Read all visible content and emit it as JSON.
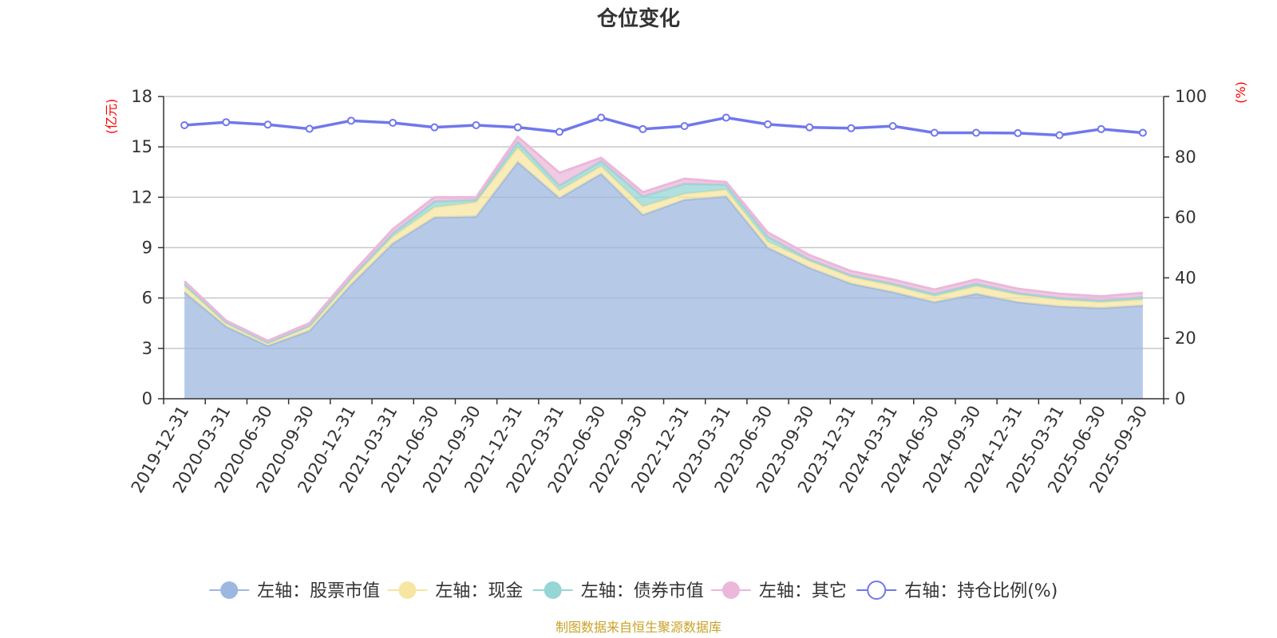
{
  "chart_data": {
    "type": "area",
    "title": "仓位变化",
    "left_axis_unit": "(亿元)",
    "right_axis_unit": "(%)",
    "categories": [
      "2019-12-31",
      "2020-03-31",
      "2020-06-30",
      "2020-09-30",
      "2020-12-31",
      "2021-03-31",
      "2021-06-30",
      "2021-09-30",
      "2021-12-31",
      "2022-03-31",
      "2022-06-30",
      "2022-09-30",
      "2022-12-31",
      "2023-03-31",
      "2023-06-30",
      "2023-09-30",
      "2023-12-31",
      "2024-03-31",
      "2024-06-30",
      "2024-09-30",
      "2024-12-31",
      "2025-03-31",
      "2025-06-30",
      "2025-09-30"
    ],
    "ylim_left": [
      0,
      18
    ],
    "yticks_left": [
      0,
      3,
      6,
      9,
      12,
      15,
      18
    ],
    "ylim_right": [
      0,
      100
    ],
    "yticks_right": [
      0,
      20,
      40,
      60,
      80,
      100
    ],
    "grid": true,
    "legend_position": "bottom",
    "stacked": true,
    "series": [
      {
        "name": "左轴：股票市值",
        "axis": "left",
        "kind": "area",
        "color": "#9db8e0",
        "values": [
          6.35,
          4.3,
          3.15,
          4.05,
          6.8,
          9.25,
          10.8,
          10.85,
          14.1,
          11.95,
          13.4,
          10.95,
          11.85,
          12.05,
          9.0,
          7.8,
          6.85,
          6.35,
          5.75,
          6.25,
          5.75,
          5.5,
          5.4,
          5.55
        ]
      },
      {
        "name": "左轴：现金",
        "axis": "left",
        "kind": "area",
        "color": "#f7e6a1",
        "values": [
          0.35,
          0.2,
          0.15,
          0.25,
          0.3,
          0.4,
          0.6,
          0.85,
          0.85,
          0.45,
          0.45,
          0.5,
          0.35,
          0.4,
          0.35,
          0.4,
          0.4,
          0.4,
          0.35,
          0.45,
          0.45,
          0.4,
          0.35,
          0.35
        ]
      },
      {
        "name": "左轴：债券市值",
        "axis": "left",
        "kind": "area",
        "color": "#96d6d5",
        "values": [
          0.15,
          0.05,
          0.05,
          0.05,
          0.1,
          0.2,
          0.35,
          0.15,
          0.35,
          0.3,
          0.3,
          0.6,
          0.6,
          0.3,
          0.3,
          0.1,
          0.1,
          0.1,
          0.15,
          0.15,
          0.1,
          0.1,
          0.1,
          0.15
        ]
      },
      {
        "name": "左轴：其它",
        "axis": "left",
        "kind": "area",
        "color": "#ebb8da",
        "values": [
          0.15,
          0.1,
          0.1,
          0.15,
          0.2,
          0.25,
          0.25,
          0.15,
          0.3,
          0.75,
          0.2,
          0.25,
          0.3,
          0.15,
          0.25,
          0.25,
          0.25,
          0.25,
          0.25,
          0.25,
          0.25,
          0.25,
          0.25,
          0.25
        ]
      },
      {
        "name": "右轴：持仓比例(%)",
        "axis": "right",
        "kind": "line",
        "color": "#7177ec",
        "values": [
          90.5,
          91.5,
          90.7,
          89.3,
          92,
          91.3,
          89.8,
          90.5,
          89.8,
          88.3,
          93,
          89.2,
          90.2,
          93,
          90.8,
          89.8,
          89.5,
          90.2,
          88,
          88,
          87.9,
          87.2,
          89.2,
          88
        ]
      }
    ]
  },
  "footer": {
    "source_text": "制图数据来自恒生聚源数据库",
    "source_color": "#c9a227"
  },
  "axis_unit_color": "#ff0000"
}
